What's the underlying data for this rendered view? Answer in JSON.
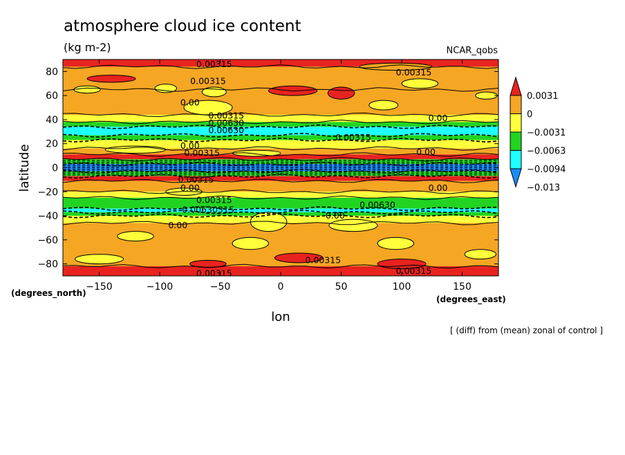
{
  "chart_data": {
    "type": "heatmap",
    "title": "atmosphere cloud ice content",
    "units": "(kg m-2)",
    "source": "NCAR_qobs",
    "xlabel": "lon",
    "ylabel": "latitude",
    "x_unit_label": "(degrees_east)",
    "y_unit_label": "(degrees_north)",
    "note": "[ (diff) from (mean) zonal of control ]",
    "xlim": [
      -180,
      180
    ],
    "ylim": [
      -90,
      90
    ],
    "x_ticks": [
      -150,
      -100,
      -50,
      0,
      50,
      100,
      150
    ],
    "y_ticks": [
      80,
      60,
      40,
      20,
      0,
      -20,
      -40,
      -60,
      -80
    ],
    "x_tick_labels": [
      "−150",
      "−100",
      "−50",
      "0",
      "50",
      "100",
      "150"
    ],
    "y_tick_labels": [
      "80",
      "60",
      "40",
      "20",
      "0",
      "−20",
      "−40",
      "−60",
      "−80"
    ],
    "colorbar": {
      "labels": [
        "0.0031",
        "0",
        "−0.0031",
        "−0.0063",
        "−0.0094",
        "−0.013"
      ],
      "colors": [
        "#e8231f",
        "#f5a623",
        "#ffff3c",
        "#22d422",
        "#1effff",
        "#1a8cff"
      ]
    },
    "zonal_bands": [
      {
        "lat": [
          84,
          90
        ],
        "class": 0
      },
      {
        "lat": [
          65,
          84
        ],
        "class": 1
      },
      {
        "lat": [
          44,
          65
        ],
        "class": 1
      },
      {
        "lat": [
          38,
          44
        ],
        "class": 2
      },
      {
        "lat": [
          34,
          38
        ],
        "class": 3
      },
      {
        "lat": [
          27,
          34
        ],
        "class": 4
      },
      {
        "lat": [
          23,
          27
        ],
        "class": 3
      },
      {
        "lat": [
          16,
          23
        ],
        "class": 2
      },
      {
        "lat": [
          11,
          16
        ],
        "class": 1
      },
      {
        "lat": [
          7,
          11
        ],
        "class": 0
      },
      {
        "lat": [
          3,
          7
        ],
        "class": 3
      },
      {
        "lat": [
          -3,
          3
        ],
        "class": 5
      },
      {
        "lat": [
          -7,
          -3
        ],
        "class": 3
      },
      {
        "lat": [
          -11,
          -7
        ],
        "class": 0
      },
      {
        "lat": [
          -20,
          -11
        ],
        "class": 1
      },
      {
        "lat": [
          -25,
          -20
        ],
        "class": 2
      },
      {
        "lat": [
          -34,
          -25
        ],
        "class": 3
      },
      {
        "lat": [
          -37,
          -34
        ],
        "class": 4
      },
      {
        "lat": [
          -40,
          -37
        ],
        "class": 3
      },
      {
        "lat": [
          -46,
          -40
        ],
        "class": 2
      },
      {
        "lat": [
          -82,
          -46
        ],
        "class": 1
      },
      {
        "lat": [
          -90,
          -82
        ],
        "class": 0
      }
    ],
    "patches": [
      {
        "lon": -160,
        "lat": 65,
        "w": 22,
        "h": 6,
        "class": 2
      },
      {
        "lon": -95,
        "lat": 66,
        "w": 18,
        "h": 7,
        "class": 2
      },
      {
        "lon": -55,
        "lat": 63,
        "w": 20,
        "h": 8,
        "class": 2
      },
      {
        "lon": 10,
        "lat": 64,
        "w": 40,
        "h": 8,
        "class": 0
      },
      {
        "lon": 50,
        "lat": 62,
        "w": 22,
        "h": 10,
        "class": 0
      },
      {
        "lon": 115,
        "lat": 70,
        "w": 30,
        "h": 8,
        "class": 2
      },
      {
        "lon": 170,
        "lat": 60,
        "w": 18,
        "h": 6,
        "class": 2
      },
      {
        "lon": -60,
        "lat": 50,
        "w": 40,
        "h": 12,
        "class": 2
      },
      {
        "lon": 85,
        "lat": 52,
        "w": 24,
        "h": 8,
        "class": 2
      },
      {
        "lon": -140,
        "lat": 74,
        "w": 40,
        "h": 6,
        "class": 0
      },
      {
        "lon": 95,
        "lat": 84,
        "w": 60,
        "h": 6,
        "class": 1
      },
      {
        "lon": -120,
        "lat": 15,
        "w": 50,
        "h": 6,
        "class": 2
      },
      {
        "lon": -20,
        "lat": 12,
        "w": 40,
        "h": 5,
        "class": 2
      },
      {
        "lon": -80,
        "lat": -20,
        "w": 30,
        "h": 6,
        "class": 2
      },
      {
        "lon": -10,
        "lat": -45,
        "w": 30,
        "h": 16,
        "class": 2
      },
      {
        "lon": 60,
        "lat": -48,
        "w": 40,
        "h": 10,
        "class": 2
      },
      {
        "lon": -120,
        "lat": -57,
        "w": 30,
        "h": 8,
        "class": 2
      },
      {
        "lon": -25,
        "lat": -63,
        "w": 30,
        "h": 10,
        "class": 2
      },
      {
        "lon": 95,
        "lat": -63,
        "w": 30,
        "h": 10,
        "class": 2
      },
      {
        "lon": -150,
        "lat": -76,
        "w": 40,
        "h": 8,
        "class": 2
      },
      {
        "lon": 15,
        "lat": -75,
        "w": 40,
        "h": 8,
        "class": 0
      },
      {
        "lon": 100,
        "lat": -80,
        "w": 40,
        "h": 8,
        "class": 0
      },
      {
        "lon": 165,
        "lat": -72,
        "w": 26,
        "h": 8,
        "class": 2
      },
      {
        "lon": -60,
        "lat": -80,
        "w": 30,
        "h": 6,
        "class": 0
      }
    ],
    "contour_labels": [
      {
        "lon": -55,
        "lat": 86,
        "text": "0.00315"
      },
      {
        "lon": 110,
        "lat": 79,
        "text": "0.00315"
      },
      {
        "lon": -60,
        "lat": 72,
        "text": "0.00315"
      },
      {
        "lon": -75,
        "lat": 54,
        "text": "0.00"
      },
      {
        "lon": -45,
        "lat": 43,
        "text": "0.00315"
      },
      {
        "lon": -45,
        "lat": 37,
        "text": "0.00630"
      },
      {
        "lon": -45,
        "lat": 31,
        "text": "0.00630"
      },
      {
        "lon": 130,
        "lat": 41,
        "text": "0.00"
      },
      {
        "lon": 60,
        "lat": 25,
        "text": "0.00315"
      },
      {
        "lon": -75,
        "lat": 18,
        "text": "0.00"
      },
      {
        "lon": -65,
        "lat": 12,
        "text": "0.00315"
      },
      {
        "lon": 120,
        "lat": 13,
        "text": "0.00"
      },
      {
        "lon": -70,
        "lat": -10,
        "text": "0.00315"
      },
      {
        "lon": -75,
        "lat": -17,
        "text": "0.00"
      },
      {
        "lon": 130,
        "lat": -17,
        "text": "0.00"
      },
      {
        "lon": -55,
        "lat": -27,
        "text": "0.00315"
      },
      {
        "lon": -60,
        "lat": -35,
        "text": "0.00630315"
      },
      {
        "lon": 80,
        "lat": -31,
        "text": "0.00630"
      },
      {
        "lon": 45,
        "lat": -40,
        "text": "0.00"
      },
      {
        "lon": -85,
        "lat": -48,
        "text": "0.00"
      },
      {
        "lon": 35,
        "lat": -77,
        "text": "0.00315"
      },
      {
        "lon": -55,
        "lat": -88,
        "text": "0.00315"
      },
      {
        "lon": 110,
        "lat": -86,
        "text": "0.00315"
      }
    ]
  }
}
